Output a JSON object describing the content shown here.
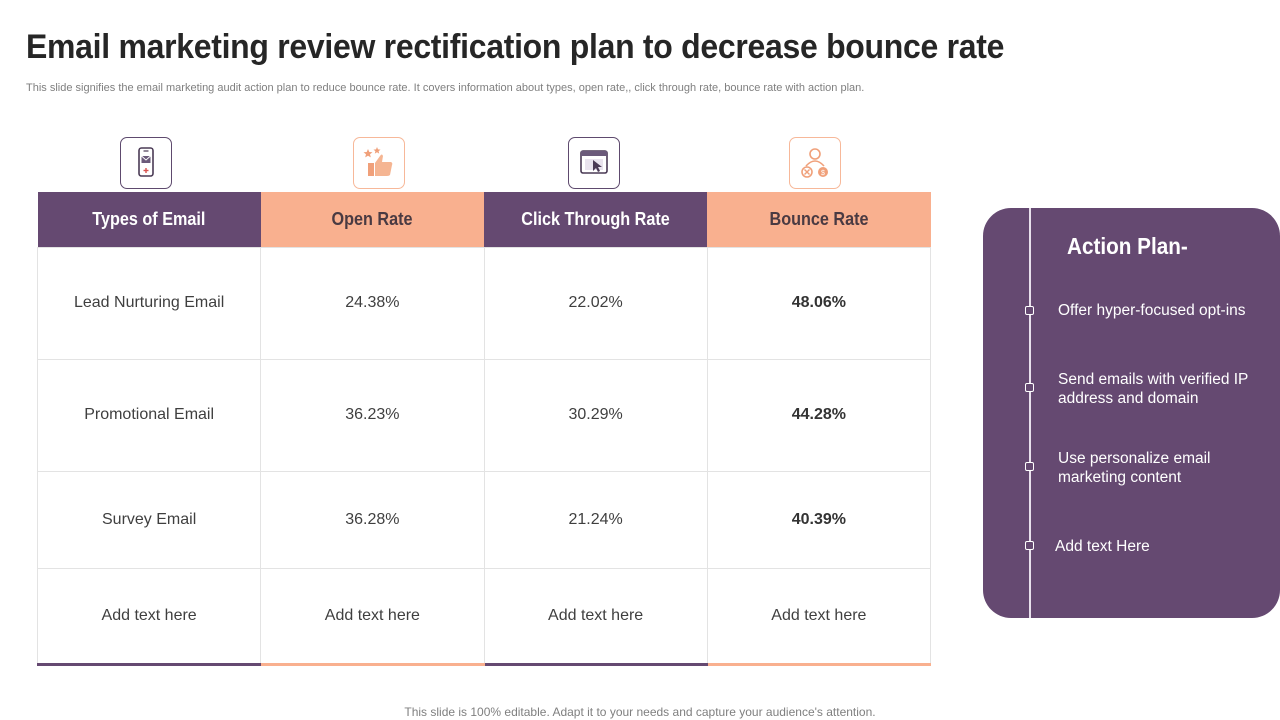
{
  "header": {
    "title": "Email marketing review rectification plan to decrease bounce rate",
    "subtitle": "This slide signifies the email marketing audit action plan to reduce bounce rate. It covers information about types, open rate,, click through rate, bounce rate with action plan."
  },
  "icons": [
    "mobile-email-icon",
    "thumbs-up-stars-icon",
    "browser-click-icon",
    "bounce-cost-icon"
  ],
  "colors": {
    "purple": "#654971",
    "peach": "#f9b08f"
  },
  "table": {
    "columns": [
      "Types of Email",
      "Open Rate",
      "Click Through Rate",
      "Bounce Rate"
    ],
    "rows": [
      [
        "Lead Nurturing  Email",
        "24.38%",
        "22.02%",
        "48.06%"
      ],
      [
        "Promotional Email",
        "36.23%",
        "30.29%",
        "44.28%"
      ],
      [
        "Survey  Email",
        "36.28%",
        "21.24%",
        "40.39%"
      ],
      [
        "Add text here",
        "Add text here",
        "Add text here",
        "Add text here"
      ]
    ]
  },
  "action_plan": {
    "title": "Action Plan-",
    "items": [
      "Offer hyper-focused opt-ins",
      "Send emails with verified IP address and domain",
      "Use personalize email marketing content",
      "Add text Here"
    ]
  },
  "footer": "This slide is 100% editable. Adapt it to your needs and capture your audience's attention."
}
